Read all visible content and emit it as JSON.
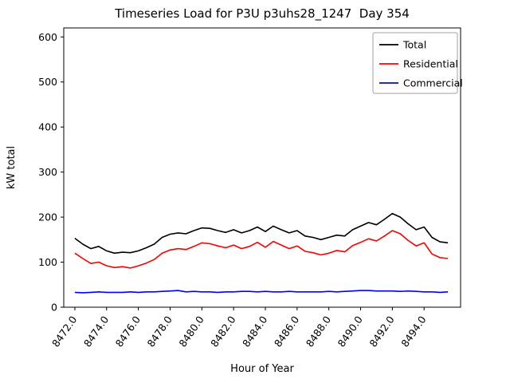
{
  "chart_data": {
    "type": "line",
    "title": "Timeseries Load for P3U p3uhs28_1247  Day 354",
    "xlabel": "Hour of Year",
    "ylabel": "kW total",
    "xlim": [
      8471.3,
      8496.3
    ],
    "ylim": [
      0,
      620
    ],
    "grid": false,
    "legend_position": "upper right",
    "xticks": [
      8472,
      8474,
      8476,
      8478,
      8480,
      8482,
      8484,
      8486,
      8488,
      8490,
      8492,
      8494
    ],
    "xtick_labels": [
      "8472.0",
      "8474.0",
      "8476.0",
      "8478.0",
      "8480.0",
      "8482.0",
      "8484.0",
      "8486.0",
      "8488.0",
      "8490.0",
      "8492.0",
      "8494.0"
    ],
    "yticks": [
      0,
      100,
      200,
      300,
      400,
      500,
      600
    ],
    "ytick_labels": [
      "0",
      "100",
      "200",
      "300",
      "400",
      "500",
      "600"
    ],
    "x": [
      8472.0,
      8472.5,
      8473.0,
      8473.5,
      8474.0,
      8474.5,
      8475.0,
      8475.5,
      8476.0,
      8476.5,
      8477.0,
      8477.5,
      8478.0,
      8478.5,
      8479.0,
      8479.5,
      8480.0,
      8480.5,
      8481.0,
      8481.5,
      8482.0,
      8482.5,
      8483.0,
      8483.5,
      8484.0,
      8484.5,
      8485.0,
      8485.5,
      8486.0,
      8486.5,
      8487.0,
      8487.5,
      8488.0,
      8488.5,
      8489.0,
      8489.5,
      8490.0,
      8490.5,
      8491.0,
      8491.5,
      8492.0,
      8492.5,
      8493.0,
      8493.5,
      8494.0,
      8494.5,
      8495.0,
      8495.5
    ],
    "series": [
      {
        "name": "Total",
        "color": "#000000",
        "values": [
          153,
          140,
          130,
          135,
          125,
          120,
          122,
          121,
          125,
          132,
          140,
          155,
          162,
          165,
          163,
          170,
          176,
          175,
          170,
          166,
          172,
          165,
          170,
          178,
          168,
          180,
          172,
          165,
          170,
          158,
          155,
          150,
          155,
          160,
          158,
          172,
          180,
          188,
          183,
          195,
          208,
          200,
          185,
          172,
          178,
          155,
          145,
          143
        ]
      },
      {
        "name": "Residential",
        "color": "#ff0000",
        "values": [
          120,
          108,
          97,
          100,
          92,
          88,
          90,
          87,
          92,
          98,
          106,
          120,
          127,
          130,
          128,
          135,
          143,
          141,
          136,
          132,
          138,
          130,
          135,
          144,
          133,
          146,
          138,
          130,
          136,
          124,
          121,
          116,
          120,
          126,
          123,
          137,
          144,
          152,
          147,
          158,
          170,
          163,
          148,
          136,
          143,
          118,
          110,
          108
        ]
      },
      {
        "name": "Commercial",
        "color": "#0000ff",
        "values": [
          33,
          32,
          33,
          34,
          33,
          33,
          33,
          34,
          33,
          34,
          34,
          35,
          36,
          37,
          34,
          35,
          34,
          34,
          33,
          34,
          34,
          35,
          35,
          34,
          35,
          34,
          34,
          35,
          34,
          34,
          34,
          34,
          35,
          34,
          35,
          36,
          37,
          37,
          36,
          36,
          36,
          35,
          36,
          35,
          34,
          34,
          33,
          34
        ]
      }
    ]
  }
}
